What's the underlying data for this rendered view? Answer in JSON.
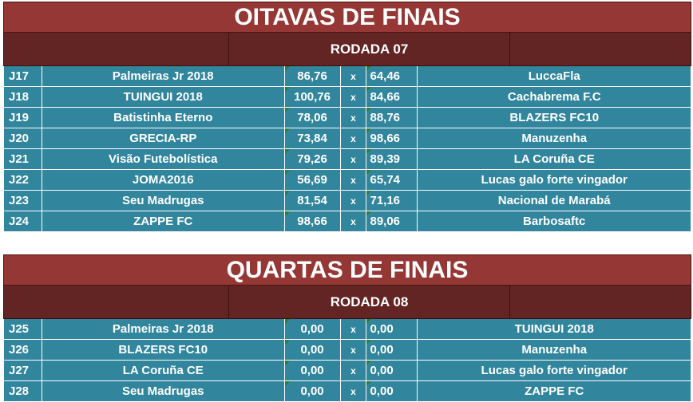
{
  "sections": [
    {
      "title": "OITAVAS DE FINAIS",
      "round": "RODADA 07",
      "matches": [
        {
          "id": "J17",
          "home": "Palmeiras Jr 2018",
          "home_score": "86,76",
          "sep": "x",
          "away_score": "64,46",
          "away": "LuccaFla"
        },
        {
          "id": "J18",
          "home": "TUINGUI 2018",
          "home_score": "100,76",
          "sep": "x",
          "away_score": "84,66",
          "away": "Cachabrema F.C"
        },
        {
          "id": "J19",
          "home": "Batistinha Eterno",
          "home_score": "78,06",
          "sep": "x",
          "away_score": "88,76",
          "away": "BLAZERS FC10"
        },
        {
          "id": "J20",
          "home": "GRECIA-RP",
          "home_score": "73,84",
          "sep": "x",
          "away_score": "98,66",
          "away": "Manuzenha"
        },
        {
          "id": "J21",
          "home": "Visão Futebolística",
          "home_score": "79,26",
          "sep": "x",
          "away_score": "89,39",
          "away": "LA Coruña CE"
        },
        {
          "id": "J22",
          "home": "JOMA2016",
          "home_score": "56,69",
          "sep": "x",
          "away_score": "65,74",
          "away": "Lucas galo forte vingador"
        },
        {
          "id": "J23",
          "home": "Seu Madrugas",
          "home_score": "81,54",
          "sep": "x",
          "away_score": "71,16",
          "away": "Nacional de Marabá"
        },
        {
          "id": "J24",
          "home": "ZAPPE FC",
          "home_score": "98,66",
          "sep": "x",
          "away_score": "89,06",
          "away": "Barbosaftc"
        }
      ]
    },
    {
      "title": "QUARTAS DE FINAIS",
      "round": "RODADA 08",
      "matches": [
        {
          "id": "J25",
          "home": "Palmeiras Jr 2018",
          "home_score": "0,00",
          "sep": "x",
          "away_score": "0,00",
          "away": "TUINGUI 2018"
        },
        {
          "id": "J26",
          "home": "BLAZERS FC10",
          "home_score": "0,00",
          "sep": "x",
          "away_score": "0,00",
          "away": "Manuzenha"
        },
        {
          "id": "J27",
          "home": "LA Coruña CE",
          "home_score": "0,00",
          "sep": "x",
          "away_score": "0,00",
          "away": "Lucas galo forte vingador"
        },
        {
          "id": "J28",
          "home": "Seu Madrugas",
          "home_score": "0,00",
          "sep": "x",
          "away_score": "0,00",
          "away": "ZAPPE FC"
        }
      ]
    }
  ],
  "colors": {
    "title_bg": "#953735",
    "round_bg": "#632523",
    "row_bg": "#31859c",
    "text": "#ffffff"
  }
}
